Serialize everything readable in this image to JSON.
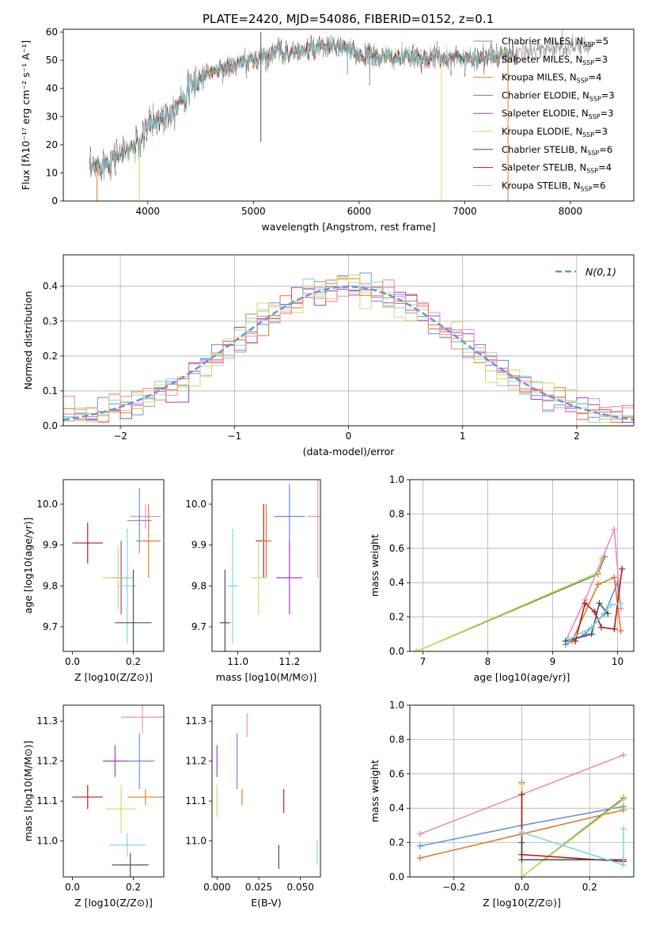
{
  "title": "PLATE=2420, MJD=54086, FIBERID=0152, z=0.1",
  "chart_data": [
    {
      "id": "spectrum",
      "type": "line",
      "xlabel": "wavelength [Angstrom, rest frame]",
      "ylabel": "Flux [fλ10⁻¹⁷ erg cm⁻² s⁻¹ A⁻¹]",
      "xlim": [
        3200,
        8600
      ],
      "ylim": [
        0,
        61
      ],
      "xticks": [
        4000,
        5000,
        6000,
        7000,
        8000
      ],
      "yticks": [
        0,
        10,
        20,
        30,
        40,
        50,
        60
      ],
      "continuum": {
        "x": [
          3450,
          3600,
          3800,
          3950,
          4000,
          4100,
          4200,
          4300,
          4400,
          4500,
          4600,
          4800,
          5000,
          5200,
          5400,
          5600,
          5800,
          6000,
          6200,
          6400,
          6600,
          6800,
          7000,
          7200,
          7400,
          7600,
          7800,
          8000,
          8200
        ],
        "y": [
          11,
          14,
          18,
          21,
          27,
          29,
          31,
          36,
          40,
          44,
          46,
          48,
          50,
          53,
          53,
          54,
          55,
          52,
          51,
          51,
          51,
          51,
          51,
          51,
          52,
          53,
          54,
          55,
          55
        ]
      },
      "series": [
        {
          "name": "Chabrier MILES, N$_{SSP}$=5",
          "color": "#6a8fdf",
          "legend": "Chabrier MILES, N",
          "sub": "SSP",
          "suffix": "=5"
        },
        {
          "name": "Salpeter MILES, N$_{SSP}$=3",
          "color": "#8a8a8a",
          "legend": "Salpeter MILES, N",
          "sub": "SSP",
          "suffix": "=3"
        },
        {
          "name": "Kroupa MILES, N$_{SSP}$=4",
          "color": "#e07b2a",
          "legend": "Kroupa MILES, N",
          "sub": "SSP",
          "suffix": "=4"
        },
        {
          "name": "Chabrier ELODIE, N$_{SSP}$=3",
          "color": "#5a9a5a",
          "legend": "Chabrier ELODIE, N",
          "sub": "SSP",
          "suffix": "=3"
        },
        {
          "name": "Salpeter ELODIE, N$_{SSP}$=3",
          "color": "#a040c0",
          "legend": "Salpeter ELODIE, N",
          "sub": "SSP",
          "suffix": "=3"
        },
        {
          "name": "Kroupa ELODIE, N$_{SSP}$=3",
          "color": "#d8d860",
          "legend": "Kroupa ELODIE, N",
          "sub": "SSP",
          "suffix": "=3"
        },
        {
          "name": "Chabrier STELIB, N$_{SSP}$=6",
          "color": "#505050",
          "legend": "Chabrier STELIB, N",
          "sub": "SSP",
          "suffix": "=6"
        },
        {
          "name": "Salpeter STELIB, N$_{SSP}$=4",
          "color": "#b02020",
          "legend": "Salpeter STELIB, N",
          "sub": "SSP",
          "suffix": "=4"
        },
        {
          "name": "Kroupa STELIB, N$_{SSP}$=6",
          "color": "#80d8e0",
          "legend": "Kroupa STELIB, N",
          "sub": "SSP",
          "suffix": "=6"
        }
      ],
      "spikes": [
        {
          "x": 3520,
          "y": 0,
          "color": "#e07b2a"
        },
        {
          "x": 3920,
          "y": 0,
          "color": "#d8d860"
        },
        {
          "x": 5070,
          "y": 21,
          "color": "#505050"
        },
        {
          "x": 5070,
          "y": 60,
          "color": "#505050"
        },
        {
          "x": 6780,
          "y": 0,
          "color": "#d8d860"
        },
        {
          "x": 7410,
          "y": 0,
          "color": "#e07b2a"
        },
        {
          "x": 6100,
          "y": 41,
          "color": "#8a8a8a"
        },
        {
          "x": 5890,
          "y": 45,
          "color": "#6a8fdf"
        }
      ]
    },
    {
      "id": "residuals",
      "type": "histogram",
      "xlabel": "(data-model)/error",
      "ylabel": "Normed distribution",
      "xlim": [
        -2.5,
        2.5
      ],
      "ylim": [
        0,
        0.49
      ],
      "xticks": [
        -2,
        -1,
        0,
        1,
        2
      ],
      "xticklabels": [
        "−2",
        "−1",
        "0",
        "1",
        "2"
      ],
      "yticks": [
        0,
        0.1,
        0.2,
        0.3,
        0.4
      ],
      "yticklabels": [
        "0.0",
        "0.1",
        "0.2",
        "0.3",
        "0.4"
      ],
      "grid": true,
      "bin_width": 0.1,
      "histogram_colors": [
        "#6a8fdf",
        "#e07b2a",
        "#d8d860",
        "#a040c0",
        "#80d8e0",
        "#e890c0",
        "#c0e070",
        "#f08080"
      ],
      "normal_curve": {
        "label": "N(0,1)",
        "color": "#6a8fdf",
        "style": "dashed"
      }
    },
    {
      "id": "age-vs-Z",
      "type": "errorbar",
      "xlabel": "Z [log10(Z/Z⊙)]",
      "ylabel": "age  [log10(age/yr)]",
      "xlim": [
        -0.03,
        0.3
      ],
      "ylim": [
        9.64,
        10.06
      ],
      "xticks": [
        0,
        0.2
      ],
      "xticklabels": [
        "0.0",
        "0.2"
      ],
      "yticks": [
        9.7,
        9.8,
        9.9,
        10.0
      ],
      "yticklabels": [
        "9.7",
        "9.8",
        "9.9",
        "10.0"
      ],
      "points": [
        {
          "x": 0.05,
          "xerr": 0.05,
          "y": 9.905,
          "yerr": 0.05,
          "color": "#b02020"
        },
        {
          "x": 0.24,
          "xerr": 0.05,
          "y": 9.97,
          "yerr": 0.03,
          "color": "#e890c0"
        },
        {
          "x": 0.25,
          "xerr": 0.04,
          "y": 9.91,
          "yerr": 0.09,
          "color": "#e07b2a"
        },
        {
          "x": 0.22,
          "xerr": 0.04,
          "y": 9.96,
          "yerr": 0.08,
          "color": "#6a8fdf"
        },
        {
          "x": 0.16,
          "xerr": 0.03,
          "y": 9.82,
          "yerr": 0.09,
          "color": "#a040c0"
        },
        {
          "x": 0.15,
          "xerr": 0.05,
          "y": 9.82,
          "yerr": 0.08,
          "color": "#c0e070"
        },
        {
          "x": 0.18,
          "xerr": 0.03,
          "y": 9.8,
          "yerr": 0.14,
          "color": "#80d8e0"
        },
        {
          "x": 0.2,
          "xerr": 0.06,
          "y": 9.71,
          "yerr": 0.13,
          "color": "#505050"
        }
      ]
    },
    {
      "id": "age-vs-mass",
      "type": "errorbar",
      "xlabel": "mass [log10(M/M⊙)]",
      "ylabel": "",
      "xlim": [
        10.9,
        11.32
      ],
      "ylim": [
        9.64,
        10.06
      ],
      "xticks": [
        11.0,
        11.2
      ],
      "xticklabels": [
        "11.0",
        "11.2"
      ],
      "yticks": [
        9.7,
        9.8,
        9.9,
        10.0
      ],
      "yticklabels": [
        "9.7",
        "9.8",
        "9.9",
        "10.0"
      ],
      "points": [
        {
          "x": 11.1,
          "xerr": 0.03,
          "y": 9.91,
          "yerr": 0.09,
          "color": "#b02020"
        },
        {
          "x": 11.31,
          "xerr": 0.04,
          "y": 9.97,
          "yerr": 0.15,
          "color": "#e890c0"
        },
        {
          "x": 11.11,
          "xerr": 0.02,
          "y": 9.91,
          "yerr": 0.09,
          "color": "#e07b2a"
        },
        {
          "x": 11.2,
          "xerr": 0.06,
          "y": 9.97,
          "yerr": 0.08,
          "color": "#6a8fdf"
        },
        {
          "x": 11.2,
          "xerr": 0.05,
          "y": 9.82,
          "yerr": 0.09,
          "color": "#a040c0"
        },
        {
          "x": 11.08,
          "xerr": 0.03,
          "y": 9.82,
          "yerr": 0.09,
          "color": "#c0e070"
        },
        {
          "x": 10.98,
          "xerr": 0.02,
          "y": 9.8,
          "yerr": 0.14,
          "color": "#80d8e0"
        },
        {
          "x": 10.95,
          "xerr": 0.02,
          "y": 9.71,
          "yerr": 0.13,
          "color": "#505050"
        }
      ]
    },
    {
      "id": "weight-vs-age",
      "type": "line",
      "xlabel": "age  [log10(age/yr)]",
      "ylabel": "mass weight",
      "xlim": [
        6.8,
        10.25
      ],
      "ylim": [
        0,
        1
      ],
      "xticks": [
        7,
        8,
        9,
        10
      ],
      "yticks": [
        0,
        0.2,
        0.4,
        0.6,
        0.8,
        1.0
      ],
      "yticklabels": [
        "0.0",
        "0.2",
        "0.4",
        "0.6",
        "0.8",
        "1.0"
      ],
      "grid": true,
      "series": [
        {
          "color": "#5a9a5a",
          "x": [
            6.9,
            9.7,
            9.8
          ],
          "y": [
            0.0,
            0.45,
            0.55
          ]
        },
        {
          "color": "#d8d860",
          "x": [
            6.9,
            9.7,
            9.75
          ],
          "y": [
            0.0,
            0.46,
            0.54
          ]
        },
        {
          "color": "#6a8fdf",
          "x": [
            9.2,
            9.5,
            9.8,
            10.0,
            10.05
          ],
          "y": [
            0.04,
            0.1,
            0.22,
            0.4,
            0.25
          ]
        },
        {
          "color": "#e890c0",
          "x": [
            9.2,
            9.5,
            9.95,
            10.05
          ],
          "y": [
            0.06,
            0.3,
            0.71,
            0.25
          ]
        },
        {
          "color": "#e07b2a",
          "x": [
            9.3,
            9.7,
            9.95,
            10.05
          ],
          "y": [
            0.06,
            0.39,
            0.43,
            0.12
          ]
        },
        {
          "color": "#b02020",
          "x": [
            9.35,
            9.5,
            9.65,
            9.75,
            9.95,
            10.07
          ],
          "y": [
            0.06,
            0.28,
            0.23,
            0.14,
            0.13,
            0.48
          ]
        },
        {
          "color": "#505050",
          "x": [
            9.2,
            9.6,
            9.72,
            9.85
          ],
          "y": [
            0.06,
            0.1,
            0.28,
            0.22
          ]
        },
        {
          "color": "#80d8e0",
          "x": [
            9.25,
            9.6,
            9.9,
            10.05
          ],
          "y": [
            0.07,
            0.14,
            0.27,
            0.28
          ]
        }
      ]
    },
    {
      "id": "mass-vs-Z",
      "type": "errorbar",
      "xlabel": "Z [log10(Z/Z⊙)]",
      "ylabel": "mass [log10(M/M⊙)]",
      "xlim": [
        -0.03,
        0.3
      ],
      "ylim": [
        10.91,
        11.34
      ],
      "xticks": [
        0,
        0.2
      ],
      "xticklabels": [
        "0.0",
        "0.2"
      ],
      "yticks": [
        11.0,
        11.1,
        11.2,
        11.3
      ],
      "yticklabels": [
        "11.0",
        "11.1",
        "11.2",
        "11.3"
      ],
      "points": [
        {
          "x": 0.05,
          "xerr": 0.05,
          "y": 11.11,
          "yerr": 0.03,
          "color": "#b02020"
        },
        {
          "x": 0.23,
          "xerr": 0.07,
          "y": 11.31,
          "yerr": 0.04,
          "color": "#e890c0"
        },
        {
          "x": 0.24,
          "xerr": 0.06,
          "y": 11.11,
          "yerr": 0.02,
          "color": "#e07b2a"
        },
        {
          "x": 0.22,
          "xerr": 0.05,
          "y": 11.2,
          "yerr": 0.07,
          "color": "#6a8fdf"
        },
        {
          "x": 0.14,
          "xerr": 0.04,
          "y": 11.2,
          "yerr": 0.04,
          "color": "#a040c0"
        },
        {
          "x": 0.16,
          "xerr": 0.05,
          "y": 11.08,
          "yerr": 0.06,
          "color": "#c0e070"
        },
        {
          "x": 0.18,
          "xerr": 0.06,
          "y": 10.99,
          "yerr": 0.03,
          "color": "#80d8e0"
        },
        {
          "x": 0.19,
          "xerr": 0.06,
          "y": 10.94,
          "yerr": 0.03,
          "color": "#505050"
        }
      ]
    },
    {
      "id": "mass-vs-ebv",
      "type": "errorbar",
      "xlabel": "E(B-V)",
      "ylabel": "",
      "xlim": [
        -0.003,
        0.062
      ],
      "ylim": [
        10.91,
        11.34
      ],
      "xticks": [
        0,
        0.025,
        0.05
      ],
      "xticklabels": [
        "0.000",
        "0.025",
        "0.050"
      ],
      "yticks": [
        11.0,
        11.1,
        11.2,
        11.3
      ],
      "yticklabels": [
        "11.0",
        "11.1",
        "11.2",
        "11.3"
      ],
      "points": [
        {
          "x": 0.0,
          "xerr": 0,
          "y": 11.2,
          "yerr": 0.04,
          "color": "#a040c0"
        },
        {
          "x": 0.0,
          "xerr": 0,
          "y": 11.1,
          "yerr": 0.04,
          "color": "#c0e070"
        },
        {
          "x": 0.012,
          "xerr": 0,
          "y": 11.2,
          "yerr": 0.07,
          "color": "#6a8fdf"
        },
        {
          "x": 0.015,
          "xerr": 0,
          "y": 11.11,
          "yerr": 0.02,
          "color": "#e07b2a"
        },
        {
          "x": 0.018,
          "xerr": 0,
          "y": 11.29,
          "yerr": 0.03,
          "color": "#e890c0"
        },
        {
          "x": 0.04,
          "xerr": 0,
          "y": 11.1,
          "yerr": 0.03,
          "color": "#b02020"
        },
        {
          "x": 0.037,
          "xerr": 0,
          "y": 10.96,
          "yerr": 0.03,
          "color": "#505050"
        },
        {
          "x": 0.06,
          "xerr": 0,
          "y": 10.97,
          "yerr": 0.03,
          "color": "#80d8e0"
        }
      ]
    },
    {
      "id": "weight-vs-Z",
      "type": "line",
      "xlabel": "Z [log10(Z/Z⊙)]",
      "ylabel": "mass weight",
      "xlim": [
        -0.33,
        0.33
      ],
      "ylim": [
        0,
        1
      ],
      "xticks": [
        -0.2,
        0,
        0.2
      ],
      "xticklabels": [
        "−0.2",
        "0.0",
        "0.2"
      ],
      "yticks": [
        0,
        0.2,
        0.4,
        0.6,
        0.8,
        1.0
      ],
      "yticklabels": [
        "0.0",
        "0.2",
        "0.4",
        "0.6",
        "0.8",
        "1.0"
      ],
      "grid": true,
      "series": [
        {
          "color": "#e890c0",
          "x": [
            -0.3,
            0.0,
            0.3
          ],
          "y": [
            0.25,
            0.48,
            0.71
          ]
        },
        {
          "color": "#6a8fdf",
          "x": [
            -0.3,
            0.0,
            0.3
          ],
          "y": [
            0.18,
            0.3,
            0.41
          ]
        },
        {
          "color": "#e07b2a",
          "x": [
            -0.3,
            0.0,
            0.3
          ],
          "y": [
            0.11,
            0.25,
            0.39
          ]
        },
        {
          "color": "#5a9a5a",
          "x": [
            0.0,
            0.0,
            0.3
          ],
          "y": [
            0.55,
            0.0,
            0.46
          ]
        },
        {
          "color": "#d8d860",
          "x": [
            0.0,
            0.0,
            0.3
          ],
          "y": [
            0.54,
            0.0,
            0.45
          ]
        },
        {
          "color": "#b02020",
          "x": [
            0.0,
            0.0,
            0.0,
            0.3
          ],
          "y": [
            0.48,
            0.13,
            0.13,
            0.09
          ]
        },
        {
          "color": "#505050",
          "x": [
            0.0,
            0.0,
            0.3
          ],
          "y": [
            0.2,
            0.1,
            0.1
          ]
        },
        {
          "color": "#80d8e0",
          "x": [
            0.0,
            0.3,
            0.3
          ],
          "y": [
            0.26,
            0.07,
            0.28
          ]
        }
      ]
    }
  ]
}
